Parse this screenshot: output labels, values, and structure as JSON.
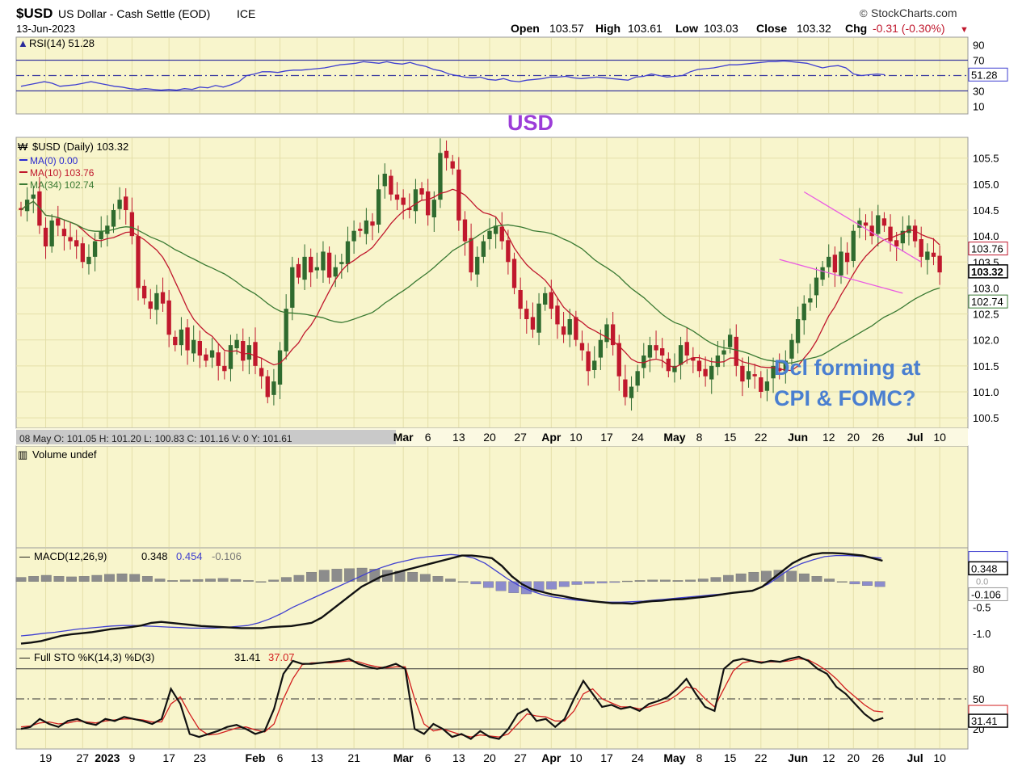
{
  "header": {
    "symbol": "$USD",
    "name": "US Dollar - Cash Settle (EOD)",
    "exchange": "ICE",
    "date": "13-Jun-2023",
    "brand": "StockCharts.com",
    "brand_symbol": "©",
    "open_label": "Open",
    "open": "103.57",
    "high_label": "High",
    "high": "103.61",
    "low_label": "Low",
    "low": "103.03",
    "close_label": "Close",
    "close": "103.32",
    "chg_label": "Chg",
    "chg": "-0.31 (-0.30%)",
    "chg_arrow": "▼"
  },
  "colors": {
    "panel_bg": "#f8f5cc",
    "grid": "#e4dfa9",
    "border": "#9a9a9a",
    "up": "#2f6b2f",
    "down": "#c0182d",
    "ma10": "#c0182d",
    "ma34": "#3a7a33",
    "rsi": "#3f3fd0",
    "macd": "#111111",
    "signal": "#3f3fd0",
    "histogram": "#8f8fa8",
    "sto_k": "#111111",
    "sto_d": "#d21f1f",
    "wedge": "#ea5ae2",
    "usd_title": "#9c3dd8",
    "annotation": "#4a7fd0",
    "gray_bar": "#c9c9c9"
  },
  "annotations": {
    "usd_title": "USD",
    "note_line1": "Dcl forming at",
    "note_line2": "CPI & FOMC?"
  },
  "chart_data": [
    {
      "panel": "rsi",
      "type": "line",
      "title": "RSI(14) 51.28",
      "value_label": "51.28",
      "ylim": [
        0,
        100
      ],
      "yticks": [
        "90",
        "70",
        "50",
        "30",
        "10"
      ],
      "levels": [
        70,
        50,
        30
      ],
      "values": [
        36,
        38,
        40,
        42,
        40,
        36,
        37,
        38,
        40,
        42,
        40,
        38,
        36,
        35,
        33,
        32,
        33,
        32,
        31,
        32,
        31,
        33,
        32,
        35,
        34,
        37,
        35,
        38,
        42,
        50,
        52,
        55,
        55,
        54,
        56,
        57,
        57,
        58,
        59,
        60,
        62,
        64,
        65,
        66,
        68,
        67,
        66,
        68,
        66,
        65,
        67,
        64,
        62,
        58,
        56,
        52,
        50,
        48,
        47,
        48,
        45,
        44,
        46,
        43,
        42,
        44,
        45,
        46,
        48,
        48,
        49,
        47,
        46,
        47,
        48,
        47,
        46,
        45,
        44,
        48,
        49,
        52,
        50,
        48,
        49,
        50,
        55,
        58,
        59,
        60,
        62,
        64,
        64,
        65,
        66,
        67,
        68,
        68,
        69,
        68,
        67,
        66,
        63,
        60,
        62,
        63,
        60,
        52,
        50,
        51,
        52,
        51
      ]
    },
    {
      "panel": "price",
      "type": "candlestick",
      "title": "$USD (Daily) 103.32",
      "legend": [
        {
          "label": "MA(0) 0.00",
          "color": "#2a2ad0"
        },
        {
          "label": "MA(10) 103.76",
          "color": "#c0182d"
        },
        {
          "label": "MA(34) 102.74",
          "color": "#3a7a33"
        }
      ],
      "ylim": [
        100.3,
        105.9
      ],
      "yticks": [
        "105.5",
        "105.0",
        "104.5",
        "104.0",
        "103.5",
        "103.0",
        "102.5",
        "102.0",
        "101.5",
        "101.0",
        "100.5"
      ],
      "last_price": "103.32",
      "ma10_value": "103.76",
      "ma34_value": "102.74",
      "closes": [
        104.5,
        104.7,
        104.8,
        104.2,
        103.8,
        104.3,
        104.2,
        104.0,
        103.9,
        103.8,
        103.5,
        103.6,
        103.9,
        104.1,
        104.2,
        104.5,
        104.7,
        104.5,
        104.0,
        103.0,
        102.8,
        102.6,
        102.9,
        102.7,
        102.1,
        101.9,
        102.2,
        101.8,
        102.0,
        101.7,
        101.6,
        101.8,
        101.5,
        101.4,
        101.9,
        102.0,
        101.6,
        101.9,
        101.5,
        101.3,
        100.9,
        101.2,
        101.8,
        102.6,
        103.4,
        103.2,
        103.6,
        103.3,
        103.4,
        103.7,
        103.2,
        103.4,
        103.5,
        103.9,
        104.1,
        104.1,
        104.3,
        104.2,
        104.9,
        105.2,
        104.8,
        104.7,
        104.6,
        104.5,
        104.9,
        104.8,
        104.4,
        104.7,
        105.6,
        105.5,
        105.3,
        104.3,
        103.9,
        103.3,
        103.6,
        103.9,
        104.1,
        104.2,
        103.9,
        103.5,
        103.0,
        102.6,
        102.4,
        102.2,
        102.7,
        102.9,
        102.6,
        102.3,
        102.1,
        102.4,
        102.0,
        101.8,
        101.4,
        101.6,
        102.0,
        102.3,
        101.9,
        101.3,
        100.9,
        101.1,
        101.4,
        101.7,
        101.9,
        101.8,
        101.7,
        101.4,
        101.5,
        101.9,
        101.7,
        101.6,
        101.4,
        101.3,
        101.5,
        101.7,
        101.8,
        102.1,
        101.5,
        101.2,
        101.4,
        101.3,
        101.0,
        101.2,
        101.5,
        101.4,
        101.6,
        102.0,
        102.4,
        102.7,
        102.8,
        103.2,
        103.4,
        103.6,
        103.3,
        103.7,
        103.5,
        104.1,
        104.3,
        104.2,
        104.0,
        104.4,
        104.2,
        103.9,
        103.8,
        104.1,
        104.2,
        103.9,
        103.6,
        103.7,
        103.6,
        103.3
      ],
      "x_ticks": [
        {
          "i": 4,
          "label": "19"
        },
        {
          "i": 10,
          "label": "27"
        },
        {
          "i": 14,
          "label": "2023",
          "bold": true
        },
        {
          "i": 18,
          "label": "9"
        },
        {
          "i": 24,
          "label": "17"
        },
        {
          "i": 29,
          "label": "23"
        },
        {
          "i": 38,
          "label": "Feb",
          "bold": true
        },
        {
          "i": 42,
          "label": "6"
        },
        {
          "i": 48,
          "label": "13"
        },
        {
          "i": 54,
          "label": "21"
        },
        {
          "i": 62,
          "label": "Mar",
          "bold": true
        },
        {
          "i": 66,
          "label": "6"
        },
        {
          "i": 71,
          "label": "13"
        },
        {
          "i": 76,
          "label": "20"
        },
        {
          "i": 81,
          "label": "27"
        },
        {
          "i": 86,
          "label": "Apr",
          "bold": true
        },
        {
          "i": 90,
          "label": "10"
        },
        {
          "i": 95,
          "label": "17"
        },
        {
          "i": 100,
          "label": "24"
        },
        {
          "i": 106,
          "label": "May",
          "bold": true
        },
        {
          "i": 110,
          "label": "8"
        },
        {
          "i": 115,
          "label": "15"
        },
        {
          "i": 120,
          "label": "22"
        },
        {
          "i": 126,
          "label": "Jun",
          "bold": true
        },
        {
          "i": 131,
          "label": "12"
        },
        {
          "i": 135,
          "label": "20"
        },
        {
          "i": 139,
          "label": "26"
        },
        {
          "i": 145,
          "label": "Jul",
          "bold": true
        },
        {
          "i": 149,
          "label": "10"
        }
      ],
      "hover_bar": "08 May O: 101.05   H: 101.20   L: 100.83   C: 101.16   V: 0   Y: 101.61"
    },
    {
      "panel": "volume",
      "type": "bar",
      "title": "Volume undef"
    },
    {
      "panel": "macd",
      "type": "line",
      "title_prefix": "MACD(12,26,9)",
      "macd_value": "0.348",
      "signal_value": "0.454",
      "hist_value": "-0.106",
      "ylim": [
        -1.3,
        0.65
      ],
      "yticks": [
        "-1.0",
        "-0.5"
      ],
      "zero_label": "0.0",
      "macd": [
        -1.2,
        -1.18,
        -1.15,
        -1.1,
        -1.05,
        -1.02,
        -1.0,
        -0.98,
        -0.95,
        -0.92,
        -0.9,
        -0.88,
        -0.85,
        -0.8,
        -0.78,
        -0.8,
        -0.82,
        -0.84,
        -0.86,
        -0.87,
        -0.88,
        -0.89,
        -0.9,
        -0.9,
        -0.9,
        -0.88,
        -0.87,
        -0.86,
        -0.83,
        -0.8,
        -0.7,
        -0.55,
        -0.4,
        -0.25,
        -0.1,
        0.0,
        0.1,
        0.15,
        0.2,
        0.25,
        0.3,
        0.35,
        0.4,
        0.45,
        0.5,
        0.5,
        0.48,
        0.45,
        0.3,
        0.1,
        -0.05,
        -0.15,
        -0.2,
        -0.25,
        -0.28,
        -0.32,
        -0.35,
        -0.38,
        -0.4,
        -0.42,
        -0.42,
        -0.43,
        -0.4,
        -0.38,
        -0.37,
        -0.35,
        -0.34,
        -0.32,
        -0.3,
        -0.28,
        -0.25,
        -0.22,
        -0.2,
        -0.18,
        -0.1,
        0.05,
        0.2,
        0.35,
        0.45,
        0.52,
        0.55,
        0.55,
        0.54,
        0.52,
        0.5,
        0.45,
        0.4
      ],
      "signal": [
        -1.05,
        -1.03,
        -1.0,
        -0.98,
        -0.95,
        -0.92,
        -0.9,
        -0.88,
        -0.86,
        -0.85,
        -0.85,
        -0.86,
        -0.87,
        -0.88,
        -0.89,
        -0.9,
        -0.9,
        -0.9,
        -0.89,
        -0.87,
        -0.85,
        -0.8,
        -0.72,
        -0.62,
        -0.5,
        -0.4,
        -0.3,
        -0.2,
        -0.1,
        0.0,
        0.1,
        0.2,
        0.28,
        0.35,
        0.4,
        0.45,
        0.48,
        0.5,
        0.52,
        0.5,
        0.45,
        0.35,
        0.2,
        0.05,
        -0.08,
        -0.18,
        -0.25,
        -0.3,
        -0.33,
        -0.36,
        -0.38,
        -0.39,
        -0.4,
        -0.4,
        -0.39,
        -0.38,
        -0.36,
        -0.34,
        -0.32,
        -0.3,
        -0.28,
        -0.26,
        -0.24,
        -0.22,
        -0.2,
        -0.15,
        -0.05,
        0.1,
        0.25,
        0.35,
        0.42,
        0.48,
        0.5,
        0.5,
        0.49,
        0.47,
        0.45
      ],
      "histogram": [
        0.08,
        0.1,
        0.12,
        0.1,
        0.09,
        0.1,
        0.12,
        0.14,
        0.15,
        0.14,
        0.1,
        0.05,
        0.02,
        0.03,
        0.04,
        0.05,
        0.06,
        0.04,
        0.02,
        0.0,
        0.03,
        0.08,
        0.12,
        0.18,
        0.22,
        0.24,
        0.25,
        0.26,
        0.24,
        0.22,
        0.2,
        0.18,
        0.14,
        0.1,
        0.05,
        0.0,
        -0.05,
        -0.12,
        -0.18,
        -0.22,
        -0.24,
        -0.2,
        -0.15,
        -0.1,
        -0.06,
        -0.04,
        -0.03,
        -0.02,
        0.01,
        0.02,
        0.03,
        0.03,
        0.02,
        0.03,
        0.05,
        0.08,
        0.12,
        0.15,
        0.18,
        0.2,
        0.22,
        0.2,
        0.15,
        0.1,
        0.05,
        0.0,
        -0.05,
        -0.08,
        -0.1
      ]
    },
    {
      "panel": "sto",
      "type": "line",
      "title_prefix": "Full STO %K(14,3) %D(3)",
      "k_value": "31.41",
      "d_value": "37.07",
      "ylim": [
        0,
        100
      ],
      "yticks": [
        "80",
        "50",
        "20"
      ],
      "levels": [
        80,
        50,
        20
      ],
      "k": [
        20,
        22,
        30,
        25,
        22,
        28,
        30,
        26,
        24,
        30,
        28,
        32,
        30,
        28,
        25,
        30,
        60,
        45,
        15,
        12,
        15,
        18,
        22,
        24,
        20,
        15,
        18,
        40,
        75,
        88,
        85,
        85,
        86,
        87,
        88,
        90,
        85,
        82,
        80,
        82,
        85,
        80,
        20,
        15,
        25,
        20,
        12,
        15,
        10,
        18,
        12,
        10,
        20,
        35,
        40,
        28,
        30,
        22,
        30,
        50,
        68,
        55,
        42,
        44,
        40,
        42,
        38,
        45,
        48,
        52,
        60,
        70,
        55,
        42,
        38,
        80,
        88,
        90,
        88,
        86,
        88,
        87,
        90,
        92,
        88,
        80,
        75,
        62,
        55,
        45,
        35,
        28,
        31
      ],
      "d": [
        22,
        23,
        26,
        27,
        25,
        26,
        28,
        27,
        26,
        28,
        29,
        30,
        30,
        29,
        27,
        27,
        45,
        52,
        35,
        20,
        14,
        15,
        18,
        21,
        22,
        19,
        17,
        25,
        50,
        70,
        84,
        86,
        86,
        86,
        87,
        88,
        87,
        84,
        82,
        81,
        82,
        82,
        50,
        25,
        18,
        20,
        17,
        14,
        12,
        14,
        13,
        12,
        15,
        25,
        35,
        33,
        32,
        28,
        28,
        38,
        55,
        60,
        50,
        46,
        42,
        42,
        40,
        42,
        45,
        48,
        54,
        62,
        60,
        50,
        42,
        60,
        78,
        86,
        88,
        87,
        87,
        87,
        88,
        90,
        89,
        84,
        78,
        70,
        60,
        52,
        44,
        38,
        37
      ]
    }
  ]
}
